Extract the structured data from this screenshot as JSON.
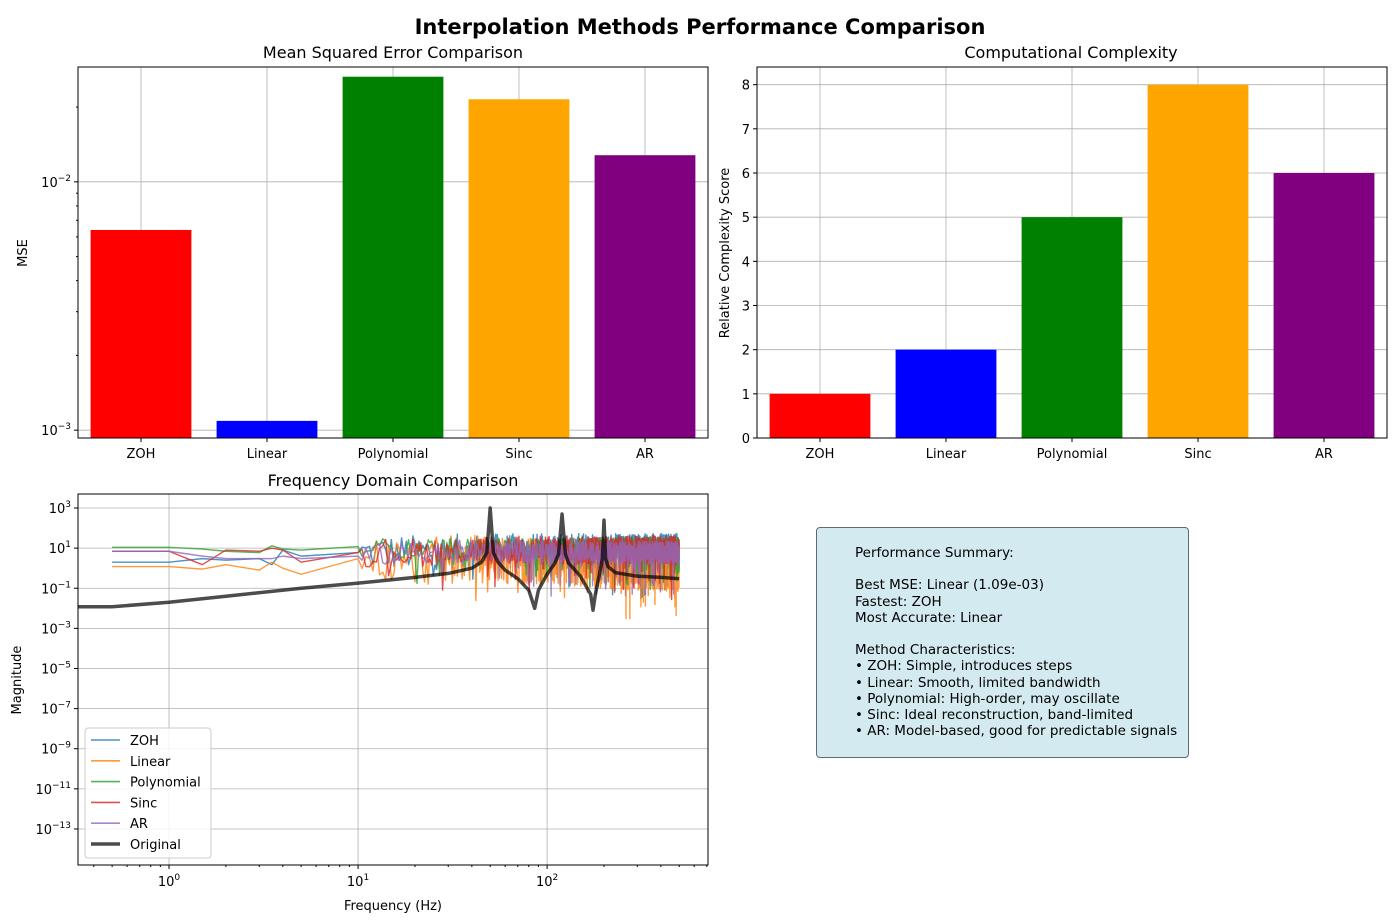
{
  "figure_title": "Interpolation Methods Performance Comparison",
  "colors": {
    "ZOH": "#ff0000",
    "Linear": "#0000ff",
    "Polynomial": "#008000",
    "Sinc": "#ffa500",
    "AR": "#800080",
    "line_ZOH": "#1f77b4",
    "line_Linear": "#ff7f0e",
    "line_Polynomial": "#2ca02c",
    "line_Sinc": "#d62728",
    "line_AR": "#9467bd",
    "line_Original": "#000000"
  },
  "chart_data": [
    {
      "type": "bar",
      "title": "Mean Squared Error Comparison",
      "xlabel": "",
      "ylabel": "MSE",
      "yscale": "log",
      "ylim": [
        0.00093,
        0.029
      ],
      "y_ticks": [
        0.001,
        0.01
      ],
      "y_tick_labels": [
        {
          "base": "10",
          "exp": "−3"
        },
        {
          "base": "10",
          "exp": "−2"
        }
      ],
      "categories": [
        "ZOH",
        "Linear",
        "Polynomial",
        "Sinc",
        "AR"
      ],
      "values": [
        0.0064,
        0.00109,
        0.0265,
        0.0215,
        0.0128
      ],
      "grid": true
    },
    {
      "type": "bar",
      "title": "Computational Complexity",
      "xlabel": "",
      "ylabel": "Relative Complexity Score",
      "ylim": [
        0,
        8.4
      ],
      "y_ticks": [
        0,
        1,
        2,
        3,
        4,
        5,
        6,
        7,
        8
      ],
      "categories": [
        "ZOH",
        "Linear",
        "Polynomial",
        "Sinc",
        "AR"
      ],
      "values": [
        1,
        2,
        5,
        8,
        6
      ],
      "grid": true
    },
    {
      "type": "line",
      "title": "Frequency Domain Comparison",
      "xlabel": "Frequency (Hz)",
      "ylabel": "Magnitude",
      "xscale": "log",
      "yscale": "log",
      "xlim": [
        0.33,
        710
      ],
      "ylim": [
        1.6e-15,
        5000
      ],
      "x_ticks": [
        1,
        10,
        100
      ],
      "x_tick_labels": [
        {
          "base": "10",
          "exp": "0"
        },
        {
          "base": "10",
          "exp": "1"
        },
        {
          "base": "10",
          "exp": "2"
        }
      ],
      "y_tick_labels": [
        {
          "base": "10",
          "exp": "3",
          "value": 1000
        },
        {
          "base": "10",
          "exp": "1",
          "value": 10
        },
        {
          "base": "10",
          "exp": "−1",
          "value": 0.1
        },
        {
          "base": "10",
          "exp": "−3",
          "value": 0.001
        },
        {
          "base": "10",
          "exp": "−5",
          "value": 1e-05
        },
        {
          "base": "10",
          "exp": "−7",
          "value": 1e-07
        },
        {
          "base": "10",
          "exp": "−9",
          "value": 1e-09
        },
        {
          "base": "10",
          "exp": "−11",
          "value": 1e-11
        },
        {
          "base": "10",
          "exp": "−13",
          "value": 1e-13
        }
      ],
      "legend_position": "lower-left",
      "grid": true,
      "series": [
        {
          "name": "ZOH",
          "x": [
            0.5,
            1,
            1.5,
            2,
            3,
            3.5,
            4,
            5,
            10,
            20,
            40,
            500
          ],
          "y": [
            2,
            2,
            3,
            2.5,
            3,
            1.5,
            8,
            4,
            6,
            6,
            7,
            7
          ]
        },
        {
          "name": "Linear",
          "x": [
            0.5,
            1,
            1.5,
            2,
            3,
            3.5,
            4,
            5,
            10,
            20,
            40,
            500
          ],
          "y": [
            1.2,
            1.2,
            0.9,
            1.5,
            0.8,
            2,
            1,
            0.5,
            3,
            2,
            3,
            1
          ]
        },
        {
          "name": "Polynomial",
          "x": [
            0.5,
            1,
            1.5,
            2,
            3,
            3.5,
            4,
            5,
            10,
            20,
            40,
            500
          ],
          "y": [
            11,
            11,
            9,
            7,
            6,
            13,
            9,
            8,
            12,
            9,
            10,
            12
          ]
        },
        {
          "name": "Sinc",
          "x": [
            0.5,
            1,
            1.5,
            2,
            3,
            3.5,
            4,
            5,
            10,
            20,
            40,
            500
          ],
          "y": [
            7,
            7,
            1.5,
            8,
            7,
            10,
            8,
            2,
            6,
            6,
            8,
            8
          ]
        },
        {
          "name": "AR",
          "x": [
            0.5,
            1,
            1.5,
            2,
            3,
            3.5,
            4,
            5,
            10,
            20,
            40,
            500
          ],
          "y": [
            7,
            7,
            4,
            3,
            3,
            3,
            4,
            3,
            4,
            6,
            7,
            6
          ]
        },
        {
          "name": "Original",
          "x": [
            0.33,
            0.5,
            1,
            2,
            5,
            10,
            20,
            30,
            40,
            45,
            48,
            50,
            52,
            55,
            60,
            70,
            80,
            86,
            90,
            100,
            110,
            115,
            120,
            125,
            130,
            150,
            170,
            175,
            180,
            190,
            196,
            200,
            204,
            210,
            230,
            300,
            400,
            500
          ],
          "y": [
            0.012,
            0.012,
            0.02,
            0.04,
            0.1,
            0.18,
            0.35,
            0.55,
            1,
            2,
            6,
            1000,
            6,
            2,
            0.8,
            0.3,
            0.08,
            0.01,
            0.08,
            0.5,
            1.8,
            5,
            500,
            5,
            1.8,
            0.4,
            0.05,
            0.008,
            0.05,
            0.6,
            3,
            250,
            3,
            1.2,
            0.6,
            0.4,
            0.35,
            0.3
          ]
        }
      ]
    }
  ],
  "summary": {
    "lines": [
      "Performance Summary:",
      "",
      "Best MSE: Linear (1.09e-03)",
      "Fastest: ZOH",
      "Most Accurate: Linear",
      "",
      "Method Characteristics:",
      "• ZOH: Simple, introduces steps",
      "• Linear: Smooth, limited bandwidth",
      "• Polynomial: High-order, may oscillate",
      "• Sinc: Ideal reconstruction, band-limited",
      "• AR: Model-based, good for predictable signals"
    ]
  }
}
